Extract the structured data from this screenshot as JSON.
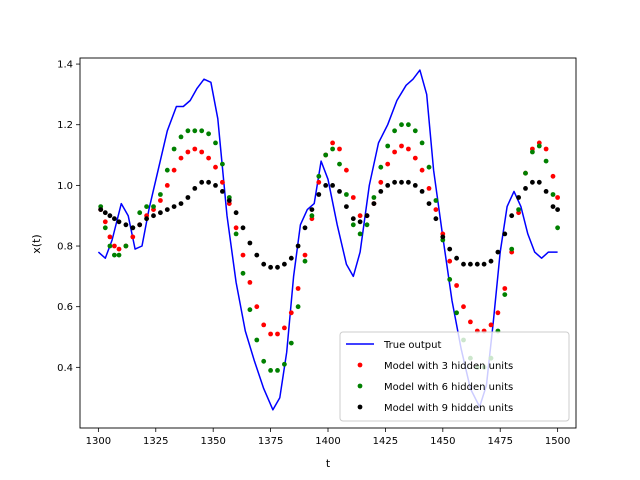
{
  "chart_data": {
    "type": "line",
    "title": "",
    "xlabel": "t",
    "ylabel": "x(t)",
    "xlim": [
      1292,
      1508
    ],
    "ylim": [
      0.2,
      1.42
    ],
    "xticks": [
      1300,
      1325,
      1350,
      1375,
      1400,
      1425,
      1450,
      1475,
      1500
    ],
    "yticks": [
      0.4,
      0.6,
      0.8,
      1.0,
      1.2,
      1.4
    ],
    "xtick_labels": [
      "1300",
      "1325",
      "1350",
      "1375",
      "1400",
      "1425",
      "1450",
      "1475",
      "1500"
    ],
    "ytick_labels": [
      "0.4",
      "0.6",
      "0.8",
      "1.0",
      "1.2",
      "1.4"
    ],
    "grid": false,
    "legend_position": "lower-right",
    "series": [
      {
        "name": "True output",
        "style": "line",
        "color": "#0000ff",
        "x": [
          1300,
          1303,
          1306,
          1310,
          1313,
          1316,
          1319,
          1322,
          1326,
          1330,
          1334,
          1337,
          1340,
          1343,
          1346,
          1349,
          1352,
          1356,
          1360,
          1364,
          1368,
          1372,
          1376,
          1379,
          1382,
          1385,
          1388,
          1391,
          1394,
          1397,
          1400,
          1404,
          1408,
          1411,
          1414,
          1418,
          1422,
          1426,
          1430,
          1434,
          1437,
          1440,
          1443,
          1446,
          1450,
          1454,
          1458,
          1462,
          1466,
          1469,
          1472,
          1475,
          1478,
          1481,
          1484,
          1487,
          1490,
          1493,
          1496,
          1500
        ],
        "y": [
          0.78,
          0.76,
          0.82,
          0.94,
          0.9,
          0.79,
          0.8,
          0.92,
          1.05,
          1.18,
          1.26,
          1.26,
          1.28,
          1.32,
          1.35,
          1.34,
          1.22,
          0.9,
          0.68,
          0.52,
          0.42,
          0.33,
          0.26,
          0.3,
          0.45,
          0.7,
          0.87,
          0.92,
          0.94,
          1.08,
          1.02,
          0.87,
          0.74,
          0.7,
          0.78,
          1.0,
          1.14,
          1.2,
          1.28,
          1.33,
          1.35,
          1.38,
          1.3,
          1.05,
          0.83,
          0.62,
          0.46,
          0.33,
          0.27,
          0.34,
          0.55,
          0.78,
          0.93,
          0.98,
          0.93,
          0.84,
          0.78,
          0.76,
          0.78,
          0.78
        ]
      },
      {
        "name": "Model with 3 hidden units",
        "style": "points",
        "color": "#ff0000",
        "x": [
          1301,
          1303,
          1305,
          1307,
          1309,
          1312,
          1315,
          1318,
          1321,
          1324,
          1327,
          1330,
          1333,
          1336,
          1339,
          1342,
          1345,
          1348,
          1351,
          1354,
          1357,
          1360,
          1363,
          1366,
          1369,
          1372,
          1375,
          1378,
          1381,
          1384,
          1387,
          1390,
          1393,
          1396,
          1399,
          1402,
          1405,
          1408,
          1411,
          1414,
          1417,
          1420,
          1423,
          1426,
          1429,
          1432,
          1435,
          1438,
          1441,
          1444,
          1447,
          1450,
          1453,
          1456,
          1459,
          1462,
          1465,
          1468,
          1471,
          1474,
          1477,
          1480,
          1483,
          1486,
          1489,
          1492,
          1495,
          1498,
          1500
        ],
        "y": [
          0.92,
          0.88,
          0.83,
          0.8,
          0.79,
          0.8,
          0.83,
          0.87,
          0.9,
          0.92,
          0.95,
          1.0,
          1.05,
          1.09,
          1.11,
          1.12,
          1.11,
          1.09,
          1.06,
          1.01,
          0.94,
          0.86,
          0.77,
          0.68,
          0.6,
          0.54,
          0.51,
          0.51,
          0.53,
          0.58,
          0.66,
          0.77,
          0.89,
          1.01,
          1.1,
          1.14,
          1.12,
          1.05,
          0.96,
          0.9,
          0.9,
          0.94,
          1.01,
          1.07,
          1.11,
          1.13,
          1.12,
          1.09,
          1.05,
          0.99,
          0.92,
          0.84,
          0.75,
          0.67,
          0.6,
          0.55,
          0.52,
          0.52,
          0.54,
          0.58,
          0.66,
          0.78,
          0.91,
          1.04,
          1.12,
          1.14,
          1.12,
          1.03,
          0.96
        ]
      },
      {
        "name": "Model with 6 hidden units",
        "style": "points",
        "color": "#008000",
        "x": [
          1301,
          1303,
          1305,
          1307,
          1309,
          1312,
          1315,
          1318,
          1321,
          1324,
          1327,
          1330,
          1333,
          1336,
          1339,
          1342,
          1345,
          1348,
          1351,
          1354,
          1357,
          1360,
          1363,
          1366,
          1369,
          1372,
          1375,
          1378,
          1381,
          1384,
          1387,
          1390,
          1393,
          1396,
          1399,
          1402,
          1405,
          1408,
          1411,
          1414,
          1417,
          1420,
          1423,
          1426,
          1429,
          1432,
          1435,
          1438,
          1441,
          1444,
          1447,
          1450,
          1453,
          1456,
          1459,
          1462,
          1465,
          1468,
          1471,
          1474,
          1477,
          1480,
          1483,
          1486,
          1489,
          1492,
          1495,
          1498,
          1500
        ],
        "y": [
          0.93,
          0.86,
          0.8,
          0.77,
          0.77,
          0.8,
          0.86,
          0.91,
          0.93,
          0.93,
          0.97,
          1.05,
          1.12,
          1.16,
          1.18,
          1.18,
          1.18,
          1.17,
          1.14,
          1.07,
          0.96,
          0.84,
          0.71,
          0.59,
          0.49,
          0.42,
          0.39,
          0.39,
          0.41,
          0.48,
          0.6,
          0.75,
          0.9,
          1.03,
          1.1,
          1.12,
          1.07,
          0.97,
          0.87,
          0.84,
          0.87,
          0.96,
          1.06,
          1.13,
          1.18,
          1.2,
          1.2,
          1.18,
          1.14,
          1.06,
          0.95,
          0.82,
          0.69,
          0.58,
          0.49,
          0.43,
          0.4,
          0.4,
          0.43,
          0.52,
          0.64,
          0.79,
          0.92,
          1.04,
          1.11,
          1.13,
          1.08,
          0.97,
          0.86
        ]
      },
      {
        "name": "Model with 9 hidden units",
        "style": "points",
        "color": "#000000",
        "x": [
          1301,
          1303,
          1305,
          1307,
          1309,
          1312,
          1315,
          1318,
          1321,
          1324,
          1327,
          1330,
          1333,
          1336,
          1339,
          1342,
          1345,
          1348,
          1351,
          1354,
          1357,
          1360,
          1363,
          1366,
          1369,
          1372,
          1375,
          1378,
          1381,
          1384,
          1387,
          1390,
          1393,
          1396,
          1399,
          1402,
          1405,
          1408,
          1411,
          1414,
          1417,
          1420,
          1423,
          1426,
          1429,
          1432,
          1435,
          1438,
          1441,
          1444,
          1447,
          1450,
          1453,
          1456,
          1459,
          1462,
          1465,
          1468,
          1471,
          1474,
          1477,
          1480,
          1483,
          1486,
          1489,
          1492,
          1495,
          1498,
          1500
        ],
        "y": [
          0.92,
          0.91,
          0.9,
          0.89,
          0.88,
          0.87,
          0.86,
          0.87,
          0.89,
          0.9,
          0.91,
          0.92,
          0.93,
          0.94,
          0.96,
          0.99,
          1.01,
          1.01,
          1.0,
          0.98,
          0.95,
          0.91,
          0.86,
          0.81,
          0.77,
          0.74,
          0.73,
          0.73,
          0.74,
          0.76,
          0.8,
          0.86,
          0.92,
          0.97,
          1.0,
          1.0,
          0.98,
          0.93,
          0.89,
          0.88,
          0.9,
          0.94,
          0.98,
          1.0,
          1.01,
          1.01,
          1.01,
          1.0,
          0.98,
          0.94,
          0.89,
          0.83,
          0.79,
          0.76,
          0.74,
          0.74,
          0.74,
          0.74,
          0.75,
          0.78,
          0.84,
          0.9,
          0.96,
          0.99,
          1.01,
          1.01,
          0.98,
          0.93,
          0.92
        ]
      }
    ]
  }
}
